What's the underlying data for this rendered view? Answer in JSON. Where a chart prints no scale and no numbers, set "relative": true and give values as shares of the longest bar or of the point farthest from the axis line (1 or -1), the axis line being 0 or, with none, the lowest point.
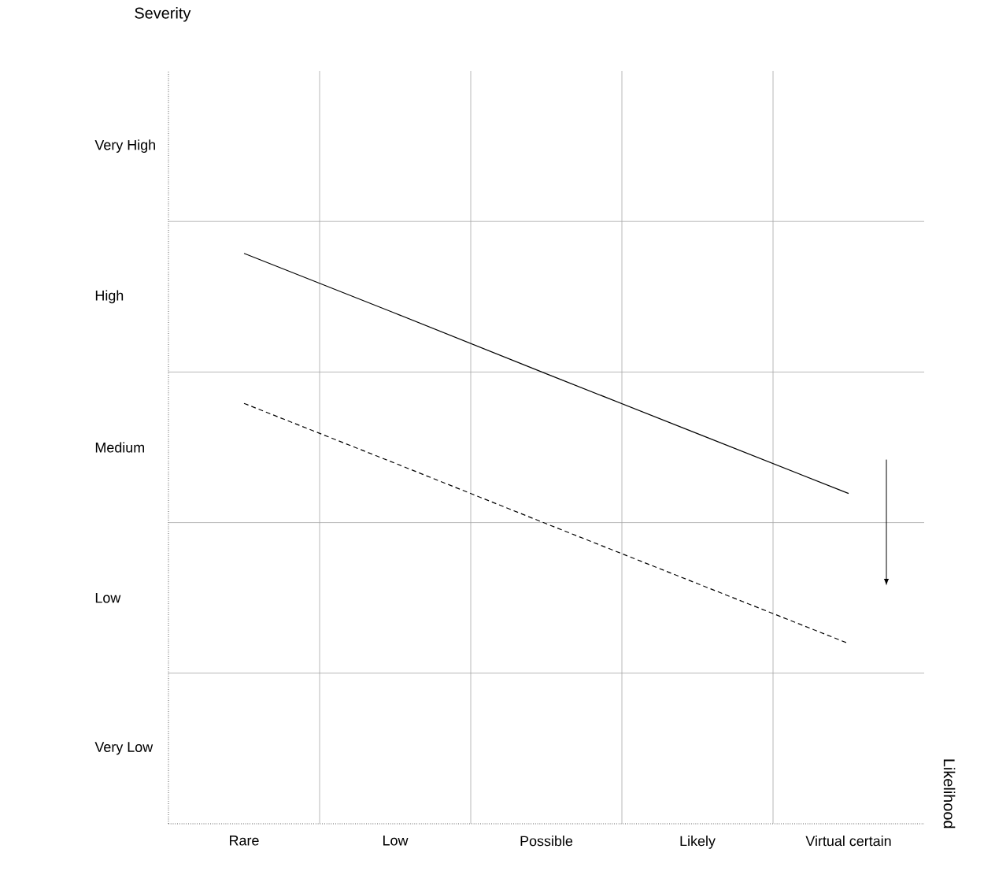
{
  "chart_data": {
    "type": "line",
    "relative": true,
    "categories": [
      "Rare",
      "Low",
      "Possible",
      "Likely",
      "Virtual certain"
    ],
    "annotations": [
      "Severity",
      "Very High",
      "High",
      "Medium",
      "Low",
      "Very Low",
      "Likelihood"
    ],
    "grid": true,
    "series": [
      {
        "values": [
          1,
          0.895,
          0.789,
          0.684,
          0.579
        ],
        "color": "#000000",
        "line_style": "solid"
      },
      {
        "values": [
          0.737,
          0.632,
          0.526,
          0.421,
          0.316
        ],
        "color": "#000000",
        "line_style": "dashed"
      }
    ]
  }
}
